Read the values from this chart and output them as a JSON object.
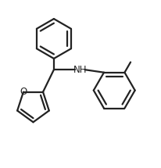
{
  "background_color": "#ffffff",
  "line_color": "#222222",
  "line_width": 1.6,
  "text_color": "#222222",
  "NH_label": "NH",
  "O_label": "O",
  "font_size": 8.5,
  "figsize": [
    2.07,
    2.15
  ],
  "dpi": 100,
  "xlim": [
    0,
    10
  ],
  "ylim": [
    0,
    10.5
  ]
}
